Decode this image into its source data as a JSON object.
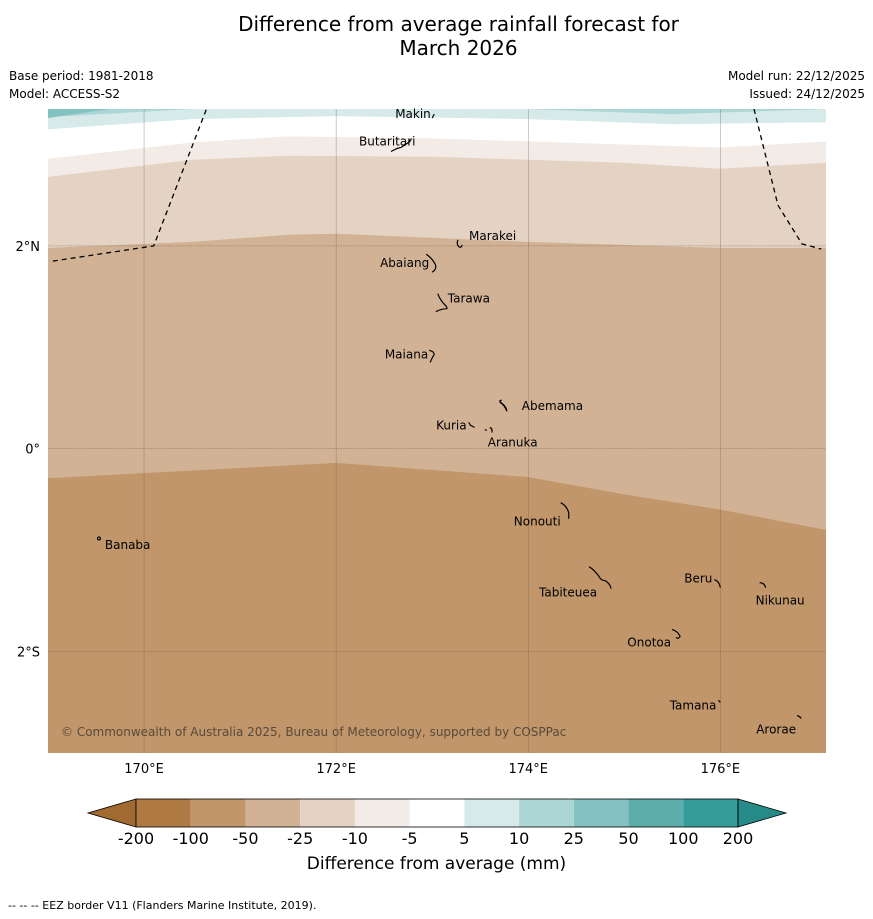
{
  "title_line1": "Difference from average rainfall forecast for",
  "title_line2": "March 2026",
  "info": {
    "base_period": "Base period: 1981-2018",
    "model": "Model: ACCESS-S2",
    "model_run": "Model run: 22/12/2025",
    "issued": "Issued: 24/12/2025"
  },
  "map": {
    "lon_range": [
      169,
      177.1
    ],
    "lat_range": [
      -3.0,
      3.35
    ],
    "lon_ticks": [
      {
        "value": 170,
        "label": "170°E"
      },
      {
        "value": 172,
        "label": "172°E"
      },
      {
        "value": 174,
        "label": "174°E"
      },
      {
        "value": 176,
        "label": "176°E"
      }
    ],
    "lat_ticks": [
      {
        "value": 2,
        "label": "2°N"
      },
      {
        "value": 0,
        "label": "0°"
      },
      {
        "value": -2,
        "label": "2°S"
      }
    ],
    "copyright": "© Commonwealth of Australia 2025, Bureau of Meteorology, supported by COSPPac",
    "places": [
      {
        "name": "Makin",
        "lon": 173.0,
        "lat": 3.28
      },
      {
        "name": "Butaritari",
        "lon": 172.8,
        "lat": 3.03
      },
      {
        "name": "Marakei",
        "lon": 173.3,
        "lat": 2.02
      },
      {
        "name": "Abaiang",
        "lon": 173.0,
        "lat": 1.82
      },
      {
        "name": "Tarawa",
        "lon": 173.1,
        "lat": 1.41
      },
      {
        "name": "Maiana",
        "lon": 173.0,
        "lat": 0.93
      },
      {
        "name": "Abemama",
        "lon": 173.85,
        "lat": 0.4
      },
      {
        "name": "Kuria",
        "lon": 173.4,
        "lat": 0.23
      },
      {
        "name": "Aranuka",
        "lon": 173.6,
        "lat": 0.18
      },
      {
        "name": "Banaba",
        "lon": 169.53,
        "lat": -0.87
      },
      {
        "name": "Nonouti",
        "lon": 174.4,
        "lat": -0.65
      },
      {
        "name": "Tabiteuea",
        "lon": 174.8,
        "lat": -1.3
      },
      {
        "name": "Beru",
        "lon": 175.98,
        "lat": -1.33
      },
      {
        "name": "Nikunau",
        "lon": 176.45,
        "lat": -1.35
      },
      {
        "name": "Onotoa",
        "lon": 175.55,
        "lat": -1.85
      },
      {
        "name": "Tamana",
        "lon": 175.98,
        "lat": -2.5
      },
      {
        "name": "Arorae",
        "lon": 176.82,
        "lat": -2.65
      }
    ],
    "bands": [
      {
        "color": "#c0966a",
        "edge_lat": [
          [
            169,
            -0.29
          ],
          [
            172,
            -0.14
          ],
          [
            174,
            -0.28
          ],
          [
            175,
            -0.45
          ],
          [
            176,
            -0.6
          ],
          [
            177.1,
            -0.8
          ]
        ]
      },
      {
        "color": "#d2b294",
        "edge_lat": [
          [
            169,
            1.98
          ],
          [
            170.5,
            2.04
          ],
          [
            171.5,
            2.11
          ],
          [
            172.0,
            2.12
          ],
          [
            174,
            2.04
          ],
          [
            176,
            1.98
          ],
          [
            177.1,
            1.98
          ]
        ]
      },
      {
        "color": "#e4d3c3",
        "edge_lat": [
          [
            169,
            2.68
          ],
          [
            170.5,
            2.85
          ],
          [
            171.5,
            2.89
          ],
          [
            173,
            2.88
          ],
          [
            175,
            2.82
          ],
          [
            176,
            2.76
          ],
          [
            177.1,
            2.82
          ]
        ]
      },
      {
        "color": "#f3ebe5",
        "edge_lat": [
          [
            169,
            2.86
          ],
          [
            170.5,
            3.02
          ],
          [
            171.5,
            3.08
          ],
          [
            173,
            3.06
          ],
          [
            175,
            3.0
          ],
          [
            176,
            2.97
          ],
          [
            177.1,
            3.03
          ]
        ]
      },
      {
        "color": "#ffffff",
        "edge_lat": [
          [
            169,
            3.15
          ],
          [
            170.5,
            3.25
          ],
          [
            172,
            3.28
          ],
          [
            174,
            3.25
          ],
          [
            175.5,
            3.2
          ],
          [
            177.1,
            3.22
          ]
        ]
      },
      {
        "color": "#d5eae9",
        "edge_lat": [
          [
            169,
            3.27
          ],
          [
            170.5,
            3.35
          ],
          [
            172,
            3.38
          ],
          [
            174,
            3.35
          ],
          [
            175.5,
            3.3
          ],
          [
            177.1,
            3.35
          ]
        ]
      },
      {
        "color": "#acd6d5",
        "edge_lat": [
          [
            169,
            3.6
          ],
          [
            177.1,
            3.6
          ]
        ]
      }
    ],
    "eez_lines": [
      [
        [
          169.05,
          1.85
        ],
        [
          170.1,
          2.0
        ],
        [
          170.65,
          3.35
        ]
      ],
      [
        [
          176.35,
          3.35
        ],
        [
          176.6,
          2.4
        ],
        [
          176.85,
          2.02
        ],
        [
          177.05,
          1.97
        ]
      ]
    ]
  },
  "colorbar": {
    "segments": [
      "#b07a44",
      "#c0966a",
      "#d2b294",
      "#e4d3c3",
      "#f3ebe5",
      "#ffffff",
      "#d5eae9",
      "#acd6d5",
      "#84c2c1",
      "#5daeab",
      "#359c9a"
    ],
    "left_arrow_color": "#a06a30",
    "right_arrow_color": "#268a88",
    "tick_labels": [
      "-200",
      "-100",
      "-50",
      "-25",
      "-10",
      "-5",
      "5",
      "10",
      "25",
      "50",
      "100",
      "200"
    ],
    "label": "Difference from average (mm)"
  },
  "footnote": "--  --  -- EEZ border V11 (Flanders Marine Institute, 2019)."
}
